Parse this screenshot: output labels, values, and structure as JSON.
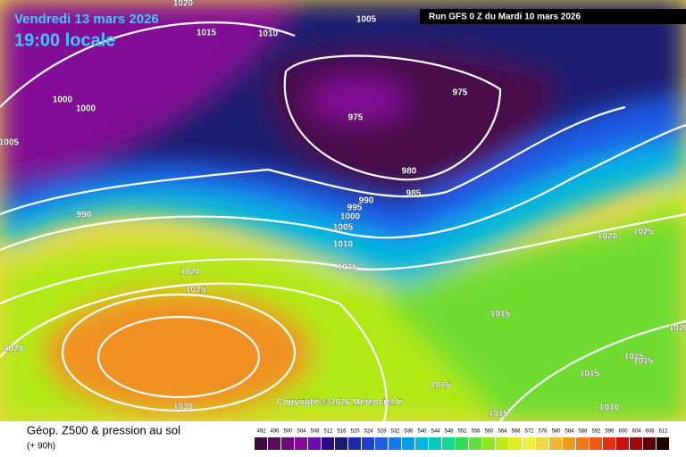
{
  "header": {
    "date": "Vendredi 13 mars 2026",
    "time": "19:00 locale",
    "run": "Run GFS 0 Z du Mardi 10 mars 2026"
  },
  "copyright": "Copyright © 2026 Meteociel.fr",
  "footer": {
    "title": "Géop. Z500 & pression au sol",
    "lead": "(+ 90h)"
  },
  "isobar_labels": [
    "1020",
    "1015",
    "1010",
    "1005",
    "1000",
    "1000",
    "1005",
    "975",
    "975",
    "980",
    "985",
    "990",
    "995",
    "1000",
    "1005",
    "1010",
    "1015",
    "990",
    "1020",
    "1025",
    "1020",
    "1030",
    "1015",
    "1020",
    "1025",
    "1015",
    "1015",
    "1010",
    "1015",
    "1015",
    "1015",
    "1020"
  ],
  "legend": {
    "values": [
      492,
      496,
      500,
      504,
      508,
      512,
      516,
      520,
      524,
      528,
      532,
      536,
      540,
      544,
      548,
      552,
      556,
      560,
      564,
      568,
      572,
      576,
      580,
      584,
      588,
      592,
      596,
      600,
      604,
      608,
      612
    ],
    "colors": [
      "#3c0a3c",
      "#5a0a5a",
      "#6e0a78",
      "#820c96",
      "#6a0cae",
      "#2a0c8a",
      "#1a1a70",
      "#1c2ca8",
      "#1e40d0",
      "#1e5ce8",
      "#1478f0",
      "#0a9ce8",
      "#00b8e0",
      "#00ccc0",
      "#10d890",
      "#30dc50",
      "#60e040",
      "#90e820",
      "#b8ec10",
      "#dcf020",
      "#f0f040",
      "#f0d840",
      "#f0b830",
      "#f09820",
      "#f07818",
      "#f05810",
      "#e83010",
      "#c81010",
      "#a00810",
      "#600408",
      "#200000"
    ]
  }
}
